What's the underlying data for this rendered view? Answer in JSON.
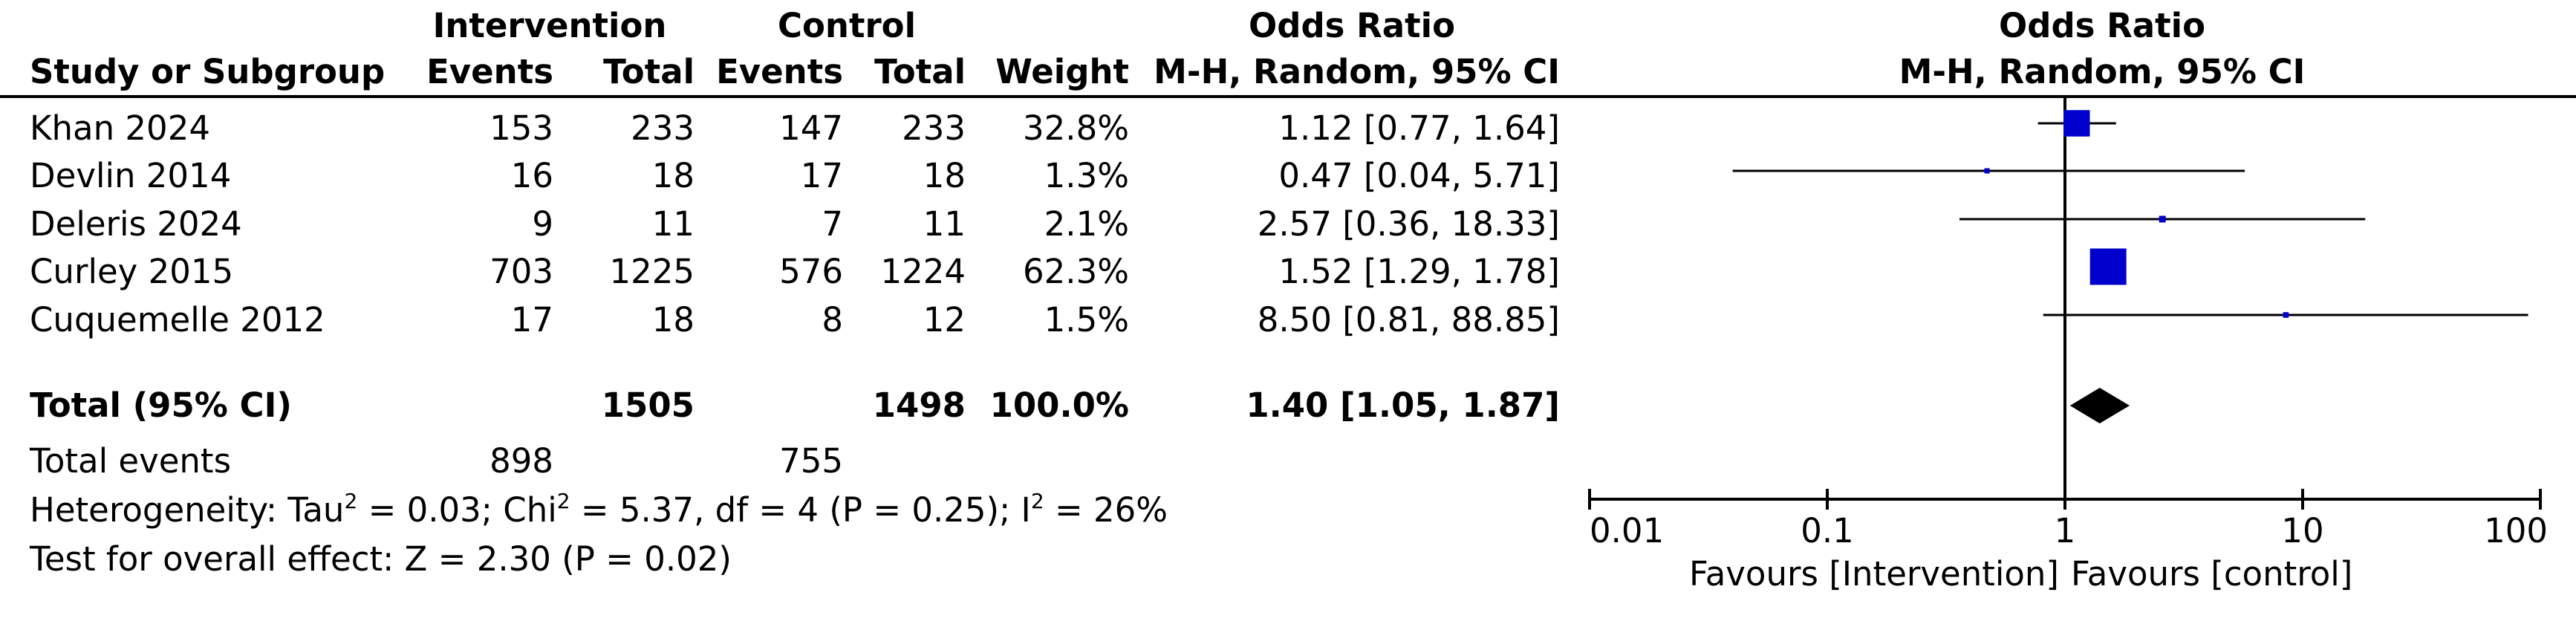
{
  "headers": {
    "group1": "Intervention",
    "group2": "Control",
    "effect": "Odds Ratio",
    "study": "Study or Subgroup",
    "events": "Events",
    "total": "Total",
    "weight": "Weight",
    "method": "M-H, Random, 95% CI",
    "plot_title": "Odds Ratio",
    "plot_method": "M-H, Random, 95% CI"
  },
  "totals": {
    "label": "Total (95% CI)",
    "int_total": "1505",
    "ctrl_total": "1498",
    "weight": "100.0%",
    "ci": "1.40 [1.05, 1.87]",
    "events_label": "Total events",
    "int_events": "898",
    "ctrl_events": "755"
  },
  "stats": {
    "het_prefix": "Heterogeneity: Tau",
    "het_mid1": " = 0.03; Chi",
    "het_mid2": " = 5.37, df = 4 (P = 0.25); I",
    "het_end": " = 26%",
    "sup": "2",
    "overall": "Test for overall effect: Z = 2.30 (P = 0.02)"
  },
  "chart_data": {
    "type": "forest",
    "axis": {
      "scale": "log",
      "ticks": [
        0.01,
        0.1,
        1,
        10,
        100
      ],
      "tick_labels": [
        "0.01",
        "0.1",
        "1",
        "10",
        "100"
      ],
      "left_label": "Favours [Intervention]",
      "right_label": "Favours [control]",
      "null_value": 1
    },
    "studies": [
      {
        "name": "Khan 2024",
        "int_events": "153",
        "int_total": "233",
        "ctrl_events": "147",
        "ctrl_total": "233",
        "weight": "32.8%",
        "w": 32.8,
        "or": 1.12,
        "lo": 0.77,
        "hi": 1.64,
        "ci": "1.12 [0.77, 1.64]"
      },
      {
        "name": "Devlin 2014",
        "int_events": "16",
        "int_total": "18",
        "ctrl_events": "17",
        "ctrl_total": "18",
        "weight": "1.3%",
        "w": 1.3,
        "or": 0.47,
        "lo": 0.04,
        "hi": 5.71,
        "ci": "0.47 [0.04, 5.71]"
      },
      {
        "name": "Deleris 2024",
        "int_events": "9",
        "int_total": "11",
        "ctrl_events": "7",
        "ctrl_total": "11",
        "weight": "2.1%",
        "w": 2.1,
        "or": 2.57,
        "lo": 0.36,
        "hi": 18.33,
        "ci": "2.57 [0.36, 18.33]"
      },
      {
        "name": "Curley 2015",
        "int_events": "703",
        "int_total": "1225",
        "ctrl_events": "576",
        "ctrl_total": "1224",
        "weight": "62.3%",
        "w": 62.3,
        "or": 1.52,
        "lo": 1.29,
        "hi": 1.78,
        "ci": "1.52 [1.29, 1.78]"
      },
      {
        "name": "Cuquemelle 2012",
        "int_events": "17",
        "int_total": "18",
        "ctrl_events": "8",
        "ctrl_total": "12",
        "weight": "1.5%",
        "w": 1.5,
        "or": 8.5,
        "lo": 0.81,
        "hi": 88.85,
        "ci": "8.50 [0.81, 88.85]"
      }
    ],
    "pooled": {
      "or": 1.4,
      "lo": 1.05,
      "hi": 1.87
    },
    "colors": {
      "study_marker": "#0000cc",
      "pooled_marker": "#000000",
      "lines": "#000000"
    }
  }
}
